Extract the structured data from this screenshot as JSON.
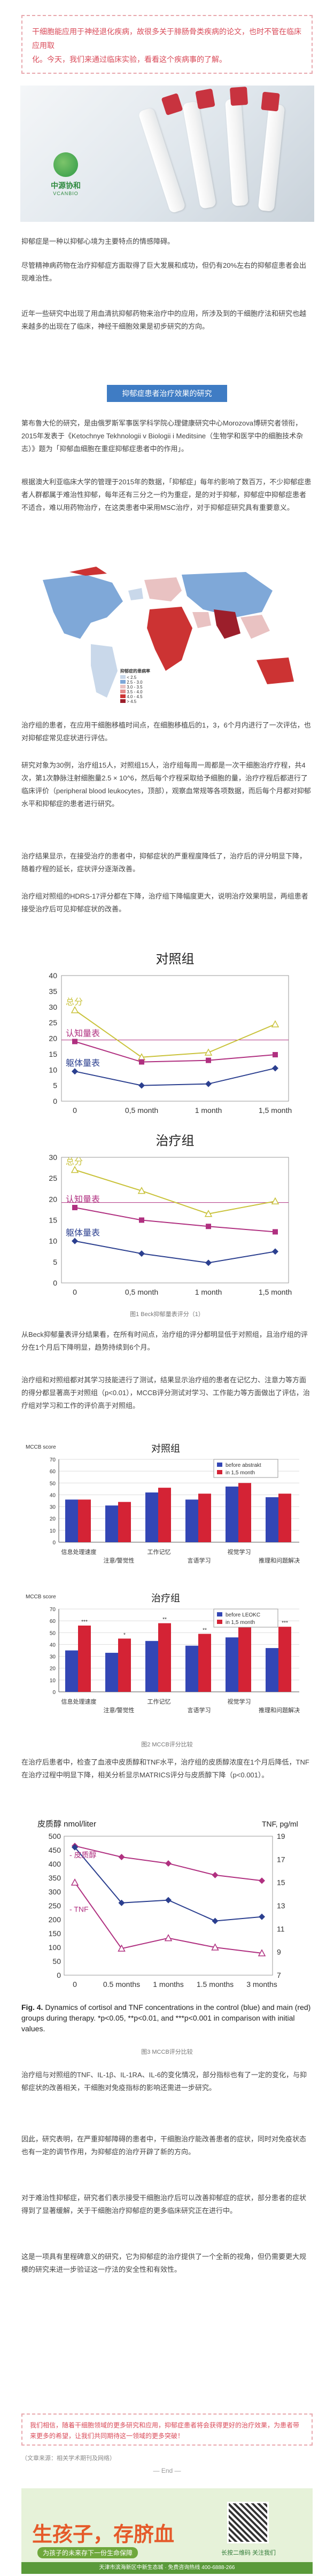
{
  "intro": {
    "text_a": "干细胞能应用于神经退化疾病，故很多关于腓肠骨类疾病的论文，也时不管在临床应用取",
    "text_b": "化。今天，我们来通过临床实验，看看这个疾病事的了解。"
  },
  "hero": {
    "logo_cn": "中源协和",
    "logo_en": "VCANBIO"
  },
  "paragraphs": {
    "p1": "抑郁症是一种以抑郁心境为主要特点的情感障碍。",
    "p2": "尽管精神病药物在治疗抑郁症方面取得了巨大发展和成功，但仍有20%左右的抑郁症患者会出现难治性。",
    "p3": "近年一些研究中出现了用血清抗抑郁药物来治疗中的应用，所涉及到的干细胞疗法和研究也越来越多的出现在了临床，神经干细胞效果是初步研究的方向。",
    "p4": "第布鲁大伦的研究，是由俄罗斯军事医学科学院心理健康研究中心Morozova博研究者领衔，2015年发表于《Ketochnye Tekhnologii v Biologii i Meditsine（生物学和医学中的细胞技术杂志）》题为「抑郁血细胞在重症抑郁症患者中的作用」。",
    "p5": "根据澳大利亚临床大学的管理于2015年的数据，「抑郁症」每年约影响了数百万，不少抑郁症患者人群都属于难治性抑郁，每年还有三分之一约为重症，是的对于抑郁，抑郁症中抑郁症患者不适合，难以用药物治疗，在这类患者中采用MSC治疗，对于抑郁症研究具有重要意义。",
    "p6": "治疗组的患者，在应用干细胞移植时间点，在细胞移植后的1，3，6个月内进行了一次评估，也对抑郁症常见症状进行评估。",
    "p7": "研究对象为30例，治疗组15人，对照组15人，治疗组每周一周都是一次干细胞治疗疗程，共4次，第1次静脉注射细胞量2.5 × 10^6，然后每个疗程采取给予细胞的量，治疗疗程后都进行了临床评价（peripheral blood leukocytes，顶部），观察血常规等各项数据，而后每个月都对抑郁水平和抑郁症的患者进行研究。",
    "p8": "治疗结果显示，在接受治疗的患者中，抑郁症状的严重程度降低了，治疗后的评分明显下降，随着疗程的延长，症状评分逐渐改善。",
    "p9": "治疗组对照组的HDRS-17评分都在下降，治疗组下降幅度更大，说明治疗效果明显，两组患者接受治疗后可见抑郁症状的改善。",
    "p10": "从Beck抑郁量表评分结果看，在所有时间点，治疗组的评分都明显低于对照组，且治疗组的评分在1个月后下降明显，趋势持续到6个月。",
    "p11": "治疗组和对照组都对其学习技能进行了测试，结果显示治疗组的患者在记忆力、注意力等方面的得分都显著高于对照组（p<0.01），MCCB评分测试对学习、工作能力等方面做出了评估，治疗组对学习和工作的评价高于对照组。",
    "p12": "在治疗后患者中，检查了血液中皮质醇和TNF水平，治疗组的皮质醇浓度在1个月后降低，TNF在治疗过程中明显下降，相关分析显示MATRICS评分与皮质醇下降（p<0.001）。",
    "p13": "治疗组与对照组的TNF、IL-1β、IL-1RA、IL-6的变化情况，部分指标也有了一定的变化，与抑郁症状的改善相关，干细胞对免疫指标的影响还需进一步研究。",
    "p14": "因此，研究表明，在严重抑郁障碍的患者中，干细胞治疗能改善患者的症状，同时对免疫状态也有一定的调节作用，为抑郁症的治疗开辟了新的方向。",
    "p15": "对于难治性抑郁症，研究者们表示接受干细胞治疗后可以改善抑郁症的症状，部分患者的症状得到了显著缓解，关于干细胞治疗抑郁症的更多临床研究正在进行中。",
    "p16": "这是一项具有里程碑意义的研究，它为抑郁症的治疗提供了一个全新的视角，但仍需要更大规模的研究来进一步验证这一疗法的安全性和有效性。"
  },
  "section_banner": "抑郁症患者治疗效果的研究",
  "map_legend": {
    "title": "抑郁症的患病率",
    "items": [
      "< 2.5",
      "2.5 - 3.0",
      "3.0 - 3.5",
      "3.5 - 4.0",
      "4.0 - 4.5",
      "> 4.5"
    ]
  },
  "figures": {
    "fig1_caption": "图1 Beck抑郁量表评分（1）",
    "fig2_caption": "图2 MCCB评分比较",
    "fig3_caption": "图3 MCCB评分比较"
  },
  "chart_data": [
    {
      "type": "line",
      "title": "对照组",
      "categories": [
        "0",
        "0,5 month",
        "1 month",
        "1,5 month"
      ],
      "series": [
        {
          "name": "总分",
          "values": [
            29,
            14,
            15.5,
            24.5
          ],
          "color": "#c9c23a"
        },
        {
          "name": "认知量表",
          "values": [
            19,
            12.5,
            13,
            14.8
          ],
          "color": "#b03080"
        },
        {
          "name": "躯体量表",
          "values": [
            9.5,
            5,
            5.5,
            10.5
          ],
          "color": "#2b3f8f"
        }
      ],
      "ylim": [
        0,
        40
      ],
      "yticks": [
        0,
        5,
        10,
        15,
        20,
        25,
        30,
        35,
        40
      ],
      "reference_value": 19.5
    },
    {
      "type": "line",
      "title": "治疗组",
      "categories": [
        "0",
        "0,5 month",
        "1 month",
        "1,5 month"
      ],
      "series": [
        {
          "name": "总分",
          "values": [
            27,
            22,
            16.5,
            19.5
          ],
          "color": "#c9c23a"
        },
        {
          "name": "认知量表",
          "values": [
            18,
            15,
            13.5,
            12.2
          ],
          "color": "#b03080"
        },
        {
          "name": "躯体量表",
          "values": [
            10,
            7,
            4.8,
            7.5
          ],
          "color": "#2b3f8f"
        }
      ],
      "ylim": [
        0,
        30
      ],
      "yticks": [
        0,
        5,
        10,
        15,
        20,
        25,
        30
      ],
      "reference_value": 19.2
    },
    {
      "type": "bar",
      "title": "对照组",
      "ylabel": "MCCB score",
      "categories": [
        "信息处理速度",
        "注意/警觉性",
        "工作记忆",
        "言语学习",
        "视觉学习",
        "推理和问题解决"
      ],
      "series": [
        {
          "name": "before abstrakt",
          "values": [
            36,
            31,
            42,
            36,
            47,
            38
          ],
          "color": "#3346b5"
        },
        {
          "name": "in 1,5 month",
          "values": [
            36,
            34,
            46,
            41,
            50,
            41
          ],
          "color": "#d42335"
        }
      ],
      "ylim": [
        0,
        70
      ],
      "yticks": [
        0,
        10,
        20,
        30,
        40,
        50,
        60,
        70
      ]
    },
    {
      "type": "bar",
      "title": "治疗组",
      "ylabel": "MCCB score",
      "categories": [
        "信息处理速度",
        "注意/警觉性",
        "工作记忆",
        "言语学习",
        "视觉学习",
        "推理和问题解决"
      ],
      "series": [
        {
          "name": "before LEOKC",
          "values": [
            35,
            33,
            43,
            39,
            46,
            37
          ],
          "color": "#3346b5"
        },
        {
          "name": "in 1,5 month",
          "values": [
            56,
            45,
            58,
            49,
            60,
            55
          ],
          "color": "#d42335"
        }
      ],
      "ylim": [
        0,
        70
      ],
      "yticks": [
        0,
        10,
        20,
        30,
        40,
        50,
        60,
        70
      ],
      "annotations": [
        "***",
        "*",
        "**",
        "**",
        "***",
        "***"
      ]
    },
    {
      "type": "line",
      "title": "",
      "ylabel_left": "皮质醇 nmol/liter",
      "ylabel_right": "TNF, pg/ml",
      "categories": [
        "0",
        "0.5 months",
        "1 months",
        "1.5 months",
        "3 months"
      ],
      "series": [
        {
          "name": "皮质醇",
          "values": [
            465,
            425,
            402,
            360,
            340
          ],
          "color": "#b03080",
          "axis": "left"
        },
        {
          "name": "TNF",
          "values": [
            15,
            9.3,
            10.2,
            9.4,
            8.9
          ],
          "color": "#b03080",
          "axis": "right"
        },
        {
          "name": "皮质醇 (control)",
          "values": [
            460,
            260,
            270,
            195,
            210
          ],
          "color": "#2b3f8f",
          "axis": "left"
        }
      ],
      "ylim_left": [
        0,
        500
      ],
      "yticks_left": [
        0,
        50,
        100,
        150,
        200,
        250,
        300,
        350,
        400,
        450,
        500
      ],
      "ylim_right": [
        7,
        19
      ],
      "yticks_right": [
        7,
        9,
        11,
        13,
        15,
        17,
        19
      ]
    }
  ],
  "fig4_caption_title": "Fig. 4.",
  "fig4_caption_text": " Dynamics of cortisol and TNF concentrations in the control (blue) and main (red) groups during therapy. *p<0.05, **p<0.01, and ***p<0.001 in comparison with initial values.",
  "quote": "我们相信，随着干细胞领域的更多研究和应用，抑郁症患者将会获得更好的治疗效果，为患者带来更多的希望，让我们共同期待这一领域的更多突破！",
  "reference": "（文章来源：相关学术期刊及网络）",
  "end": "— End —",
  "ad": {
    "headline": "生孩子，存脐血",
    "slogan": "为孩子的未来存下一份生命保障",
    "qr_label": "长按二维码 关注我们",
    "address": "天津市滨海新区中新生态城 · 免费咨询热线 400-6888-266"
  }
}
